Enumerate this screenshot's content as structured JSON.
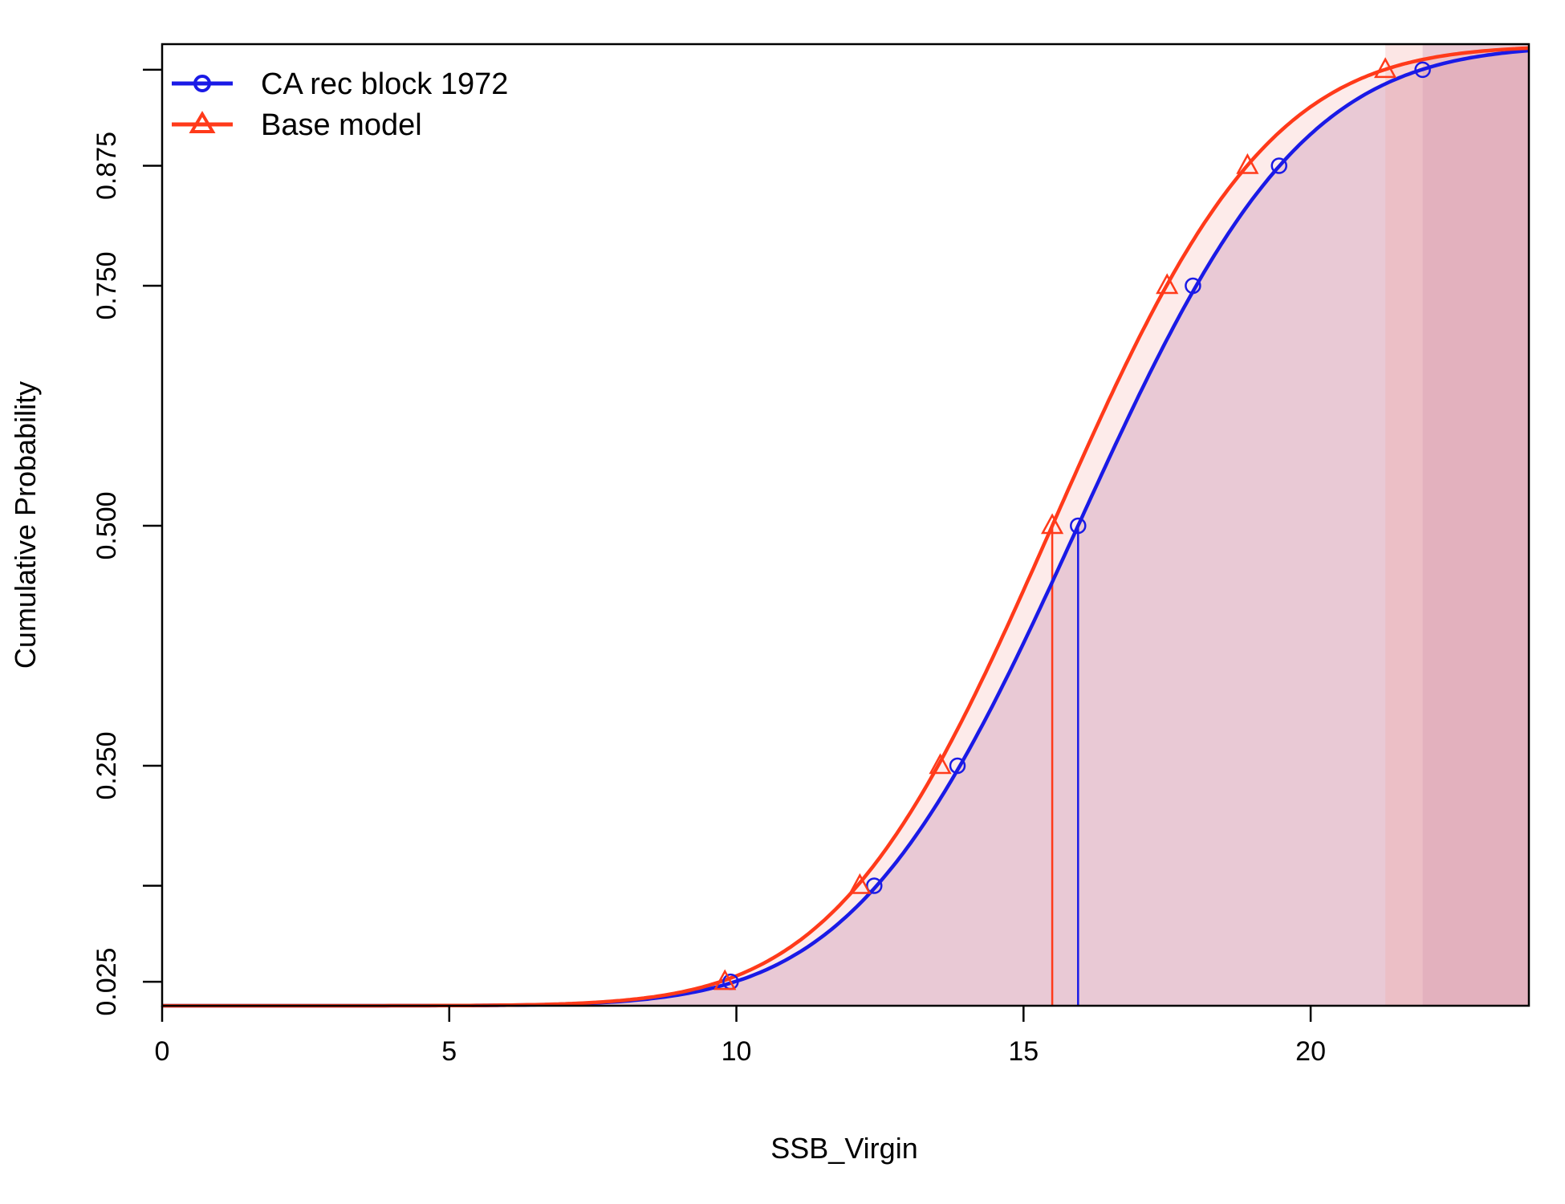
{
  "chart_data": {
    "type": "line",
    "title": "",
    "xlabel": "SSB_Virgin",
    "ylabel": "Cumulative Probability",
    "xlim": [
      0,
      23.8
    ],
    "ylim": [
      0,
      1
    ],
    "x_ticks": [
      0,
      5,
      10,
      15,
      20
    ],
    "y_ticks": [
      0.025,
      0.25,
      0.5,
      0.75,
      0.875
    ],
    "y_tick_labels": [
      "0.025",
      "0.250",
      "0.500",
      "0.750",
      "0.875"
    ],
    "y_minor_ticks": [
      0.125,
      0.975
    ],
    "grid": false,
    "legend_position": "top-left",
    "series": [
      {
        "name": "CA rec block 1972",
        "color": "#1a1ae6",
        "marker": "circle",
        "mean": 15.95,
        "sd": 3.05,
        "median": 15.95,
        "quantile_points": [
          {
            "p": 0.025,
            "x": 9.9
          },
          {
            "p": 0.125,
            "x": 12.4
          },
          {
            "p": 0.25,
            "x": 13.85
          },
          {
            "p": 0.5,
            "x": 15.95
          },
          {
            "p": 0.75,
            "x": 17.95
          },
          {
            "p": 0.875,
            "x": 19.45
          },
          {
            "p": 0.975,
            "x": 21.95
          }
        ],
        "shading": "#b07aaf"
      },
      {
        "name": "Base model",
        "color": "#ff3a1a",
        "marker": "triangle",
        "mean": 15.5,
        "sd": 2.95,
        "median": 15.5,
        "quantile_points": [
          {
            "p": 0.025,
            "x": 9.8
          },
          {
            "p": 0.125,
            "x": 12.15
          },
          {
            "p": 0.25,
            "x": 13.55
          },
          {
            "p": 0.5,
            "x": 15.5
          },
          {
            "p": 0.75,
            "x": 17.5
          },
          {
            "p": 0.875,
            "x": 18.9
          },
          {
            "p": 0.975,
            "x": 21.3
          }
        ],
        "shading": "#f4a6a0"
      }
    ]
  }
}
